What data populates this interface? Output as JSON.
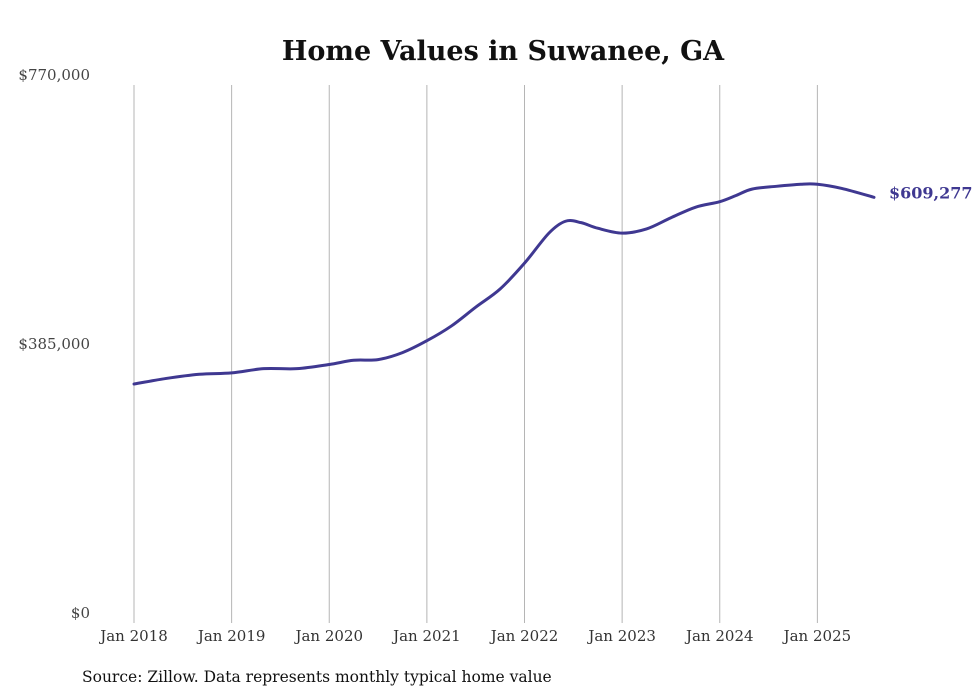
{
  "chart_data": {
    "type": "line",
    "title": "Home Values in Suwanee, GA",
    "xlabel": "",
    "ylabel": "",
    "ylim": [
      0,
      770000
    ],
    "y_ticks": [
      {
        "value": 0,
        "label": "$0"
      },
      {
        "value": 385000,
        "label": "$385,000"
      },
      {
        "value": 770000,
        "label": "$770,000"
      }
    ],
    "x_ticks": [
      {
        "value": 2018,
        "label": "Jan 2018"
      },
      {
        "value": 2019,
        "label": "Jan 2019"
      },
      {
        "value": 2020,
        "label": "Jan 2020"
      },
      {
        "value": 2021,
        "label": "Jan 2021"
      },
      {
        "value": 2022,
        "label": "Jan 2022"
      },
      {
        "value": 2023,
        "label": "Jan 2023"
      },
      {
        "value": 2024,
        "label": "Jan 2024"
      },
      {
        "value": 2025,
        "label": "Jan 2025"
      }
    ],
    "xlim": [
      2018,
      2025.58
    ],
    "grid": "vertical",
    "series": [
      {
        "name": "Typical home value",
        "color": "#3f3891",
        "x": [
          2018.0,
          2018.33,
          2018.67,
          2019.0,
          2019.33,
          2019.67,
          2020.0,
          2020.25,
          2020.5,
          2020.75,
          2021.0,
          2021.25,
          2021.5,
          2021.75,
          2022.0,
          2022.25,
          2022.42,
          2022.58,
          2022.75,
          2023.0,
          2023.25,
          2023.5,
          2023.75,
          2024.0,
          2024.17,
          2024.33,
          2024.58,
          2024.83,
          2025.0,
          2025.25,
          2025.58
        ],
        "values": [
          342000,
          350000,
          356000,
          358000,
          364000,
          364000,
          370000,
          376000,
          377000,
          387000,
          404000,
          425000,
          452000,
          478000,
          515000,
          558000,
          575000,
          573000,
          565000,
          558000,
          564000,
          580000,
          595000,
          603000,
          612000,
          621000,
          625000,
          628000,
          628000,
          622000,
          609277
        ]
      }
    ],
    "end_label": "$609,277"
  },
  "footer": {
    "source": "Source: Zillow. Data represents monthly typical home value"
  }
}
